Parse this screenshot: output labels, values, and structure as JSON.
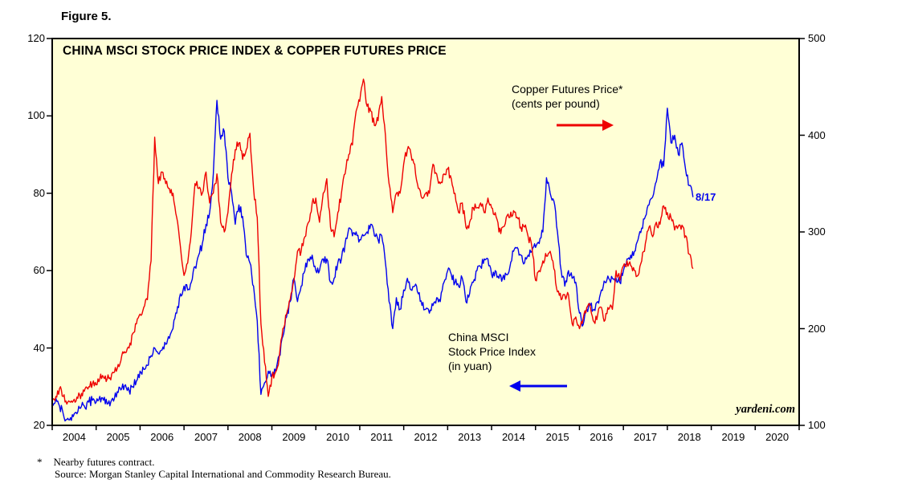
{
  "figure_label": "Figure 5.",
  "annotations": {
    "copper_label_line1": "Copper Futures Price*",
    "copper_label_line2": "(cents per pound)",
    "msci_label_line1": "China MSCI",
    "msci_label_line2": "Stock Price Index",
    "msci_label_line3": "(in yuan)",
    "last_point_label": "8/17",
    "watermark": "yardeni.com"
  },
  "footnote": {
    "marker": "*",
    "line1": "Nearby futures contract.",
    "line2": "Source: Morgan Stanley Capital International and Commodity Research Bureau."
  },
  "chart_data": {
    "type": "line",
    "title": "CHINA MSCI STOCK PRICE INDEX & COPPER FUTURES PRICE",
    "x_start": 2004.0,
    "x_step": "monthly",
    "x_axis": {
      "min": 2004,
      "max": 2021,
      "year_labels": [
        2004,
        2005,
        2006,
        2007,
        2008,
        2009,
        2010,
        2011,
        2012,
        2013,
        2014,
        2015,
        2016,
        2017,
        2018,
        2019,
        2020
      ]
    },
    "left_axis": {
      "min": 20,
      "max": 120,
      "ticks": [
        20,
        40,
        60,
        80,
        100,
        120
      ],
      "label": "China MSCI Stock Price Index (in yuan)"
    },
    "right_axis": {
      "min": 100,
      "max": 500,
      "ticks": [
        100,
        200,
        300,
        400,
        500
      ],
      "label": "Copper Futures Price (cents per pound)"
    },
    "layout": {
      "plot_bg": "#ffffd6",
      "grid": false,
      "legend": "in-plot annotations with arrows"
    },
    "series": [
      {
        "name": "China MSCI Stock Price Index (in yuan)",
        "axis": "left",
        "color": "#0000ee",
        "values": [
          26,
          27,
          25,
          23,
          21.5,
          22,
          23,
          23.5,
          25,
          24.5,
          26,
          26.5,
          26,
          27.5,
          26.5,
          25.5,
          26,
          27,
          28.5,
          29.5,
          30.5,
          29,
          30,
          31.5,
          34,
          34.5,
          35.5,
          38,
          40,
          38.5,
          39.5,
          41,
          42.5,
          45,
          49,
          54,
          56,
          55,
          57,
          61,
          64,
          67,
          72,
          75,
          85,
          104,
          94,
          96,
          84,
          80,
          72,
          77,
          74,
          64,
          62,
          56,
          47,
          28,
          31,
          34,
          33,
          34,
          38,
          43,
          48,
          52,
          58,
          52,
          56,
          60,
          63,
          64,
          60,
          60,
          63,
          63,
          57,
          58,
          62,
          63,
          67,
          71,
          69,
          70,
          68,
          69,
          70,
          72,
          69,
          68,
          69,
          62,
          52,
          45,
          53,
          50,
          55,
          58,
          55,
          56,
          54,
          51,
          50,
          49,
          51,
          53,
          52,
          57,
          60,
          59,
          57,
          56,
          58,
          52,
          54,
          57,
          60,
          61,
          63,
          63,
          59,
          60,
          58,
          58,
          59,
          61,
          65,
          66,
          64,
          62,
          64,
          65,
          66,
          67,
          70,
          84,
          80,
          78,
          70,
          60,
          56,
          60,
          58,
          57,
          49,
          46,
          50,
          51,
          50,
          52,
          55,
          57,
          58,
          58,
          58,
          57,
          60,
          63,
          64,
          65,
          68,
          71,
          74,
          77,
          79,
          83,
          88,
          87,
          102,
          93,
          95,
          90,
          93,
          86,
          82,
          79
        ]
      },
      {
        "name": "Copper Futures Price (cents per pound)",
        "axis": "right",
        "color": "#ee0000",
        "values": [
          125,
          130,
          138,
          130,
          122,
          124,
          127,
          128,
          133,
          138,
          140,
          143,
          142,
          148,
          150,
          148,
          147,
          155,
          163,
          172,
          175,
          180,
          195,
          205,
          215,
          222,
          230,
          270,
          398,
          350,
          362,
          350,
          345,
          340,
          315,
          285,
          255,
          268,
          300,
          350,
          345,
          340,
          362,
          330,
          340,
          360,
          310,
          300,
          320,
          360,
          385,
          392,
          375,
          385,
          402,
          345,
          315,
          205,
          165,
          130,
          150,
          155,
          170,
          200,
          215,
          230,
          250,
          280,
          280,
          295,
          310,
          330,
          335,
          310,
          340,
          355,
          305,
          295,
          320,
          340,
          360,
          380,
          390,
          425,
          435,
          458,
          430,
          425,
          410,
          415,
          440,
          400,
          350,
          320,
          340,
          340,
          370,
          385,
          380,
          370,
          345,
          335,
          340,
          340,
          370,
          360,
          350,
          360,
          365,
          355,
          340,
          320,
          330,
          305,
          310,
          325,
          325,
          330,
          320,
          335,
          325,
          320,
          300,
          305,
          315,
          315,
          322,
          315,
          305,
          305,
          295,
          285,
          250,
          260,
          270,
          275,
          280,
          262,
          238,
          230,
          235,
          235,
          205,
          212,
          200,
          210,
          222,
          222,
          207,
          215,
          222,
          209,
          220,
          220,
          260,
          250,
          265,
          270,
          265,
          260,
          255,
          270,
          288,
          305,
          295,
          310,
          308,
          327,
          320,
          315,
          302,
          306,
          307,
          296,
          277,
          262
        ]
      }
    ]
  }
}
